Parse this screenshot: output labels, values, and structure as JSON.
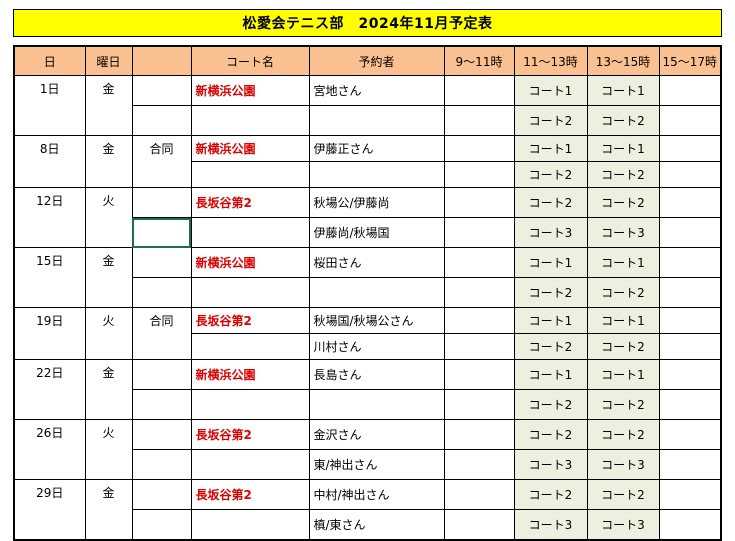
{
  "title": "松愛会テニス部　2024年11月予定表",
  "headers": [
    "日",
    "曜日",
    "",
    "コート名",
    "予約者",
    "9～11時",
    "11～13時",
    "13～15時",
    "15～17時"
  ],
  "entries": [
    {
      "day": "1日",
      "weekday": "金",
      "note": "",
      "court": "新横浜公園",
      "rows": [
        {
          "reserver": "宮地さん",
          "s11": "コート1",
          "s13": "コート1"
        },
        {
          "reserver": "",
          "s11": "コート2",
          "s13": "コート2"
        }
      ]
    },
    {
      "day": "8日",
      "weekday": "金",
      "note": "合同",
      "court": "新横浜公園",
      "rows": [
        {
          "reserver": "伊藤正さん",
          "s11": "コート1",
          "s13": "コート1"
        },
        {
          "reserver": "",
          "s11": "コート2",
          "s13": "コート2"
        }
      ]
    },
    {
      "day": "12日",
      "weekday": "火",
      "note": "",
      "court": "長坂谷第2",
      "rows": [
        {
          "reserver": "秋場公/伊藤尚",
          "s11": "コート2",
          "s13": "コート2"
        },
        {
          "reserver": "伊藤尚/秋場国",
          "s11": "コート3",
          "s13": "コート3"
        }
      ]
    },
    {
      "day": "15日",
      "weekday": "金",
      "note": "",
      "court": "新横浜公園",
      "rows": [
        {
          "reserver": "桜田さん",
          "s11": "コート1",
          "s13": "コート1"
        },
        {
          "reserver": "",
          "s11": "コート2",
          "s13": "コート2"
        }
      ]
    },
    {
      "day": "19日",
      "weekday": "火",
      "note": "合同",
      "court": "長坂谷第2",
      "rows": [
        {
          "reserver": "秋場国/秋場公さん",
          "s11": "コート1",
          "s13": "コート1"
        },
        {
          "reserver": "川村さん",
          "s11": "コート2",
          "s13": "コート2"
        }
      ]
    },
    {
      "day": "22日",
      "weekday": "金",
      "note": "",
      "court": "新横浜公園",
      "rows": [
        {
          "reserver": "長島さん",
          "s11": "コート1",
          "s13": "コート1"
        },
        {
          "reserver": "",
          "s11": "コート2",
          "s13": "コート2"
        }
      ]
    },
    {
      "day": "26日",
      "weekday": "火",
      "note": "",
      "court": "長坂谷第2",
      "rows": [
        {
          "reserver": "金沢さん",
          "s11": "コート2",
          "s13": "コート2"
        },
        {
          "reserver": "東/神出さん",
          "s11": "コート3",
          "s13": "コート3"
        }
      ]
    },
    {
      "day": "29日",
      "weekday": "金",
      "note": "",
      "court": "長坂谷第2",
      "rows": [
        {
          "reserver": "中村/神出さん",
          "s11": "コート2",
          "s13": "コート2"
        },
        {
          "reserver": "槙/東さん",
          "s11": "コート3",
          "s13": "コート3"
        }
      ]
    }
  ]
}
